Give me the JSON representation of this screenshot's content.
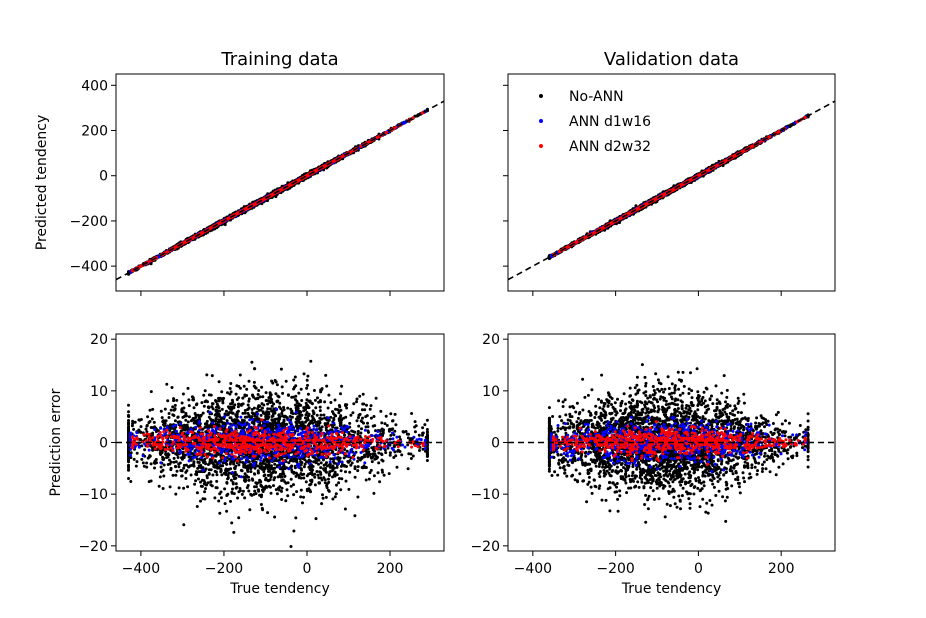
{
  "chart_data": [
    {
      "type": "scatter",
      "panel": "training-predicted",
      "title": "Training data",
      "xlabel": "",
      "ylabel": "Predicted tendency",
      "xlim": [
        -460,
        330
      ],
      "ylim": [
        -510,
        450
      ],
      "xticks": [
        -400,
        -200,
        0,
        200
      ],
      "xtick_labels_visible": false,
      "yticks": [
        -400,
        -200,
        0,
        200,
        400
      ],
      "ytick_labels": [
        "−400",
        "−200",
        "0",
        "200",
        "400"
      ],
      "reference_line": {
        "style": "dashed",
        "slope": 1,
        "intercept": 0
      },
      "series": [
        {
          "name": "No-ANN",
          "color": "#000000",
          "x_range": [
            -430,
            290
          ],
          "error_std": 5.2
        },
        {
          "name": "ANN d1w16",
          "color": "#0000ff",
          "x_range": [
            -425,
            285
          ],
          "error_std": 2.2
        },
        {
          "name": "ANN d2w32",
          "color": "#ff0000",
          "x_range": [
            -420,
            280
          ],
          "error_std": 1.3
        }
      ]
    },
    {
      "type": "scatter",
      "panel": "validation-predicted",
      "title": "Validation data",
      "xlabel": "",
      "ylabel": "",
      "xlim": [
        -460,
        330
      ],
      "ylim": [
        -510,
        450
      ],
      "xticks": [
        -400,
        -200,
        0,
        200
      ],
      "xtick_labels_visible": false,
      "yticks": [
        -400,
        -200,
        0,
        200,
        400
      ],
      "ytick_labels_visible": false,
      "reference_line": {
        "style": "dashed",
        "slope": 1,
        "intercept": 0
      },
      "legend": {
        "placement": "top-left",
        "entries": [
          {
            "label": "No-ANN",
            "color": "#000000"
          },
          {
            "label": "ANN d1w16",
            "color": "#0000ff"
          },
          {
            "label": "ANN d2w32",
            "color": "#ff0000"
          }
        ]
      },
      "series": [
        {
          "name": "No-ANN",
          "color": "#000000",
          "x_range": [
            -360,
            265
          ],
          "error_std": 5.0
        },
        {
          "name": "ANN d1w16",
          "color": "#0000ff",
          "x_range": [
            -355,
            260
          ],
          "error_std": 2.2
        },
        {
          "name": "ANN d2w32",
          "color": "#ff0000",
          "x_range": [
            -350,
            258
          ],
          "error_std": 1.3
        }
      ]
    },
    {
      "type": "scatter",
      "panel": "training-error",
      "title": "",
      "xlabel": "True tendency",
      "ylabel": "Prediction error",
      "xlim": [
        -460,
        330
      ],
      "ylim": [
        -21,
        21
      ],
      "xticks": [
        -400,
        -200,
        0,
        200
      ],
      "xtick_labels": [
        "−400",
        "−200",
        "0",
        "200"
      ],
      "yticks": [
        -20,
        -10,
        0,
        10,
        20
      ],
      "ytick_labels": [
        "−20",
        "−10",
        "0",
        "10",
        "20"
      ],
      "reference_line": {
        "style": "dashed",
        "slope": 0,
        "intercept": 0
      },
      "series": [
        {
          "name": "No-ANN",
          "color": "#000000",
          "x_range": [
            -430,
            290
          ],
          "error_std": 5.2
        },
        {
          "name": "ANN d1w16",
          "color": "#0000ff",
          "x_range": [
            -425,
            285
          ],
          "error_std": 2.2
        },
        {
          "name": "ANN d2w32",
          "color": "#ff0000",
          "x_range": [
            -420,
            280
          ],
          "error_std": 1.3
        }
      ]
    },
    {
      "type": "scatter",
      "panel": "validation-error",
      "title": "",
      "xlabel": "True tendency",
      "ylabel": "",
      "xlim": [
        -460,
        330
      ],
      "ylim": [
        -21,
        21
      ],
      "xticks": [
        -400,
        -200,
        0,
        200
      ],
      "xtick_labels": [
        "−400",
        "−200",
        "0",
        "200"
      ],
      "yticks": [
        -20,
        -10,
        0,
        10,
        20
      ],
      "ytick_labels": [
        "−20",
        "−10",
        "0",
        "10",
        "20"
      ],
      "reference_line": {
        "style": "dashed",
        "slope": 0,
        "intercept": 0
      },
      "series": [
        {
          "name": "No-ANN",
          "color": "#000000",
          "x_range": [
            -360,
            265
          ],
          "error_std": 5.0
        },
        {
          "name": "ANN d1w16",
          "color": "#0000ff",
          "x_range": [
            -355,
            260
          ],
          "error_std": 2.2
        },
        {
          "name": "ANN d2w32",
          "color": "#ff0000",
          "x_range": [
            -350,
            258
          ],
          "error_std": 1.3
        }
      ]
    }
  ]
}
